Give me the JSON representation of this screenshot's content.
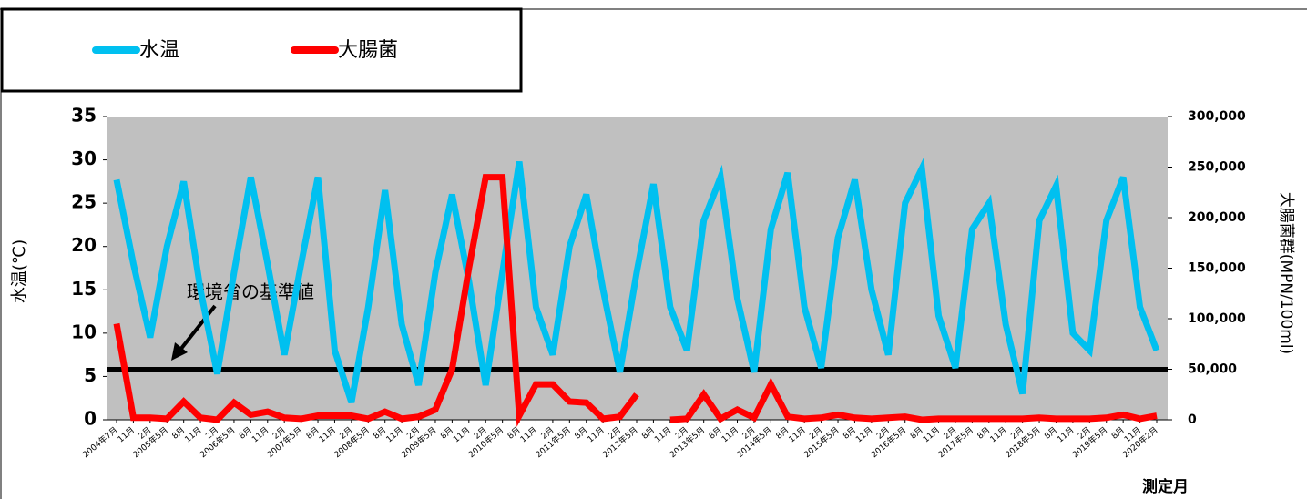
{
  "chart_data": {
    "type": "line",
    "categories": [
      "2004年7月",
      "11月",
      "2月",
      "2005年5月",
      "8月",
      "11月",
      "2月",
      "2006年5月",
      "8月",
      "11月",
      "2月",
      "2007年5月",
      "8月",
      "11月",
      "2月",
      "2008年5月",
      "8月",
      "11月",
      "2月",
      "2009年5月",
      "8月",
      "11月",
      "2月",
      "2010年5月",
      "8月",
      "11月",
      "2月",
      "2011年5月",
      "8月",
      "11月",
      "2月",
      "2012年5月",
      "8月",
      "11月",
      "2月",
      "2013年5月",
      "8月",
      "11月",
      "2月",
      "2014年5月",
      "8月",
      "11月",
      "2月",
      "2015年5月",
      "8月",
      "11月",
      "2月",
      "2016年5月",
      "8月",
      "11月",
      "2月",
      "2017年5月",
      "8月",
      "11月",
      "2月",
      "2018年5月",
      "8月",
      "11月",
      "2月",
      "2019年5月",
      "8月",
      "11月",
      "2020年2月"
    ],
    "series": [
      {
        "name": "水温",
        "color": "#00c0f0",
        "values": [
          27.7,
          18,
          9.5,
          20,
          27.5,
          15,
          5.3,
          17,
          28,
          18,
          7.5,
          18,
          28,
          8,
          2,
          13,
          26.5,
          11,
          4,
          17,
          26,
          16,
          4,
          17,
          29.8,
          13,
          7.5,
          20,
          26,
          15,
          5.5,
          17,
          27.2,
          13,
          8,
          23,
          28,
          14,
          5.5,
          22,
          28.5,
          13,
          6,
          21,
          27.7,
          15,
          7.5,
          25,
          29,
          12,
          6,
          22,
          25,
          11,
          3,
          23,
          27,
          10,
          8,
          23,
          28,
          13,
          8
        ]
      },
      {
        "name": "大腸菌",
        "color": "#ff0000",
        "axis": "y2",
        "values": [
          95000,
          2000,
          2000,
          1000,
          18000,
          2000,
          0,
          17000,
          5000,
          8000,
          2000,
          1000,
          4000,
          4000,
          4000,
          1000,
          8000,
          1000,
          3000,
          10000,
          50000,
          150000,
          240000,
          240000,
          4000,
          35000,
          35000,
          18000,
          17000,
          1000,
          3000,
          25000,
          null,
          0,
          1000,
          25000,
          1000,
          10000,
          2000,
          35000,
          3000,
          1000,
          2000,
          5000,
          2000,
          1000,
          2000,
          3000,
          0,
          1000,
          1000,
          1000,
          1000,
          1000,
          1000,
          2000,
          1000,
          1000,
          1000,
          2000,
          5000,
          1000,
          4000
        ]
      }
    ],
    "ylabel": "水温(℃)",
    "y2label": "大腸菌群(MPN/100ml)",
    "xlabel": "測定月",
    "ylim": [
      0,
      35
    ],
    "yticks": [
      0,
      5,
      10,
      15,
      20,
      25,
      30,
      35
    ],
    "y2lim": [
      0,
      300000
    ],
    "y2ticks": [
      0,
      {
        "value": 50000,
        "label": "50,000"
      },
      {
        "value": 100000,
        "label": "100,000"
      },
      {
        "value": 150000,
        "label": "150,000"
      },
      {
        "value": 200000,
        "label": "200,000"
      },
      {
        "value": 250000,
        "label": "250,000"
      },
      {
        "value": 300000,
        "label": "300,000"
      }
    ],
    "reference_line": {
      "text": "環境省の基準値",
      "value": 50000,
      "axis": "y2",
      "color": "#000000"
    },
    "background": "#c0c0c0",
    "legend": "top-left"
  }
}
